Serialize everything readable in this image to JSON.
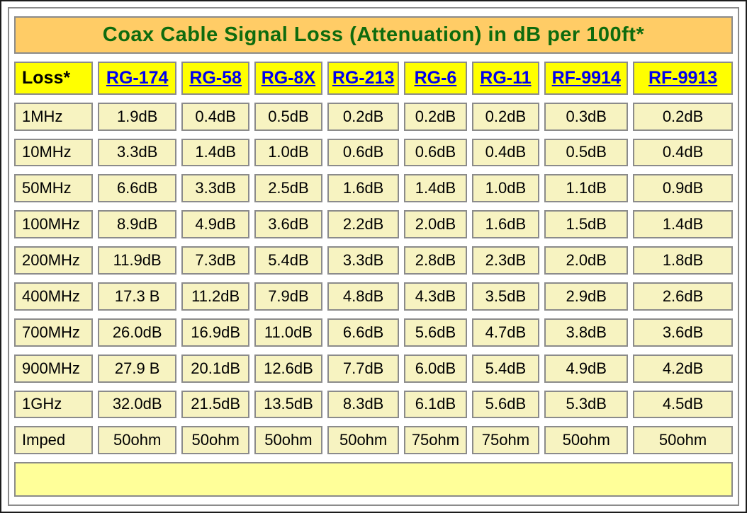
{
  "title": "Coax Cable Signal Loss (Attenuation) in dB per 100ft*",
  "colors": {
    "frame": "#1c1c1c",
    "page_bg": "#ffffff",
    "border": "#8b8b8b",
    "title_bg": "#FFCC66",
    "title_text": "#0E6B0E",
    "header_bg": "#FFFF00",
    "link": "#0000EE",
    "cell_bg": "#F7F3C1",
    "cell_text": "#000000",
    "footer_bg": "#FFFF99"
  },
  "header": {
    "corner": "Loss*",
    "columns": [
      "RG-174",
      "RG-58",
      "RG-8X",
      "RG-213",
      "RG-6",
      "RG-11",
      "RF-9914",
      "RF-9913"
    ]
  },
  "rows": [
    {
      "label": "1MHz",
      "values": [
        "1.9dB",
        "0.4dB",
        "0.5dB",
        "0.2dB",
        "0.2dB",
        "0.2dB",
        "0.3dB",
        "0.2dB"
      ]
    },
    {
      "label": "10MHz",
      "values": [
        "3.3dB",
        "1.4dB",
        "1.0dB",
        "0.6dB",
        "0.6dB",
        "0.4dB",
        "0.5dB",
        "0.4dB"
      ]
    },
    {
      "label": "50MHz",
      "values": [
        "6.6dB",
        "3.3dB",
        "2.5dB",
        "1.6dB",
        "1.4dB",
        "1.0dB",
        "1.1dB",
        "0.9dB"
      ]
    },
    {
      "label": "100MHz",
      "values": [
        "8.9dB",
        "4.9dB",
        "3.6dB",
        "2.2dB",
        "2.0dB",
        "1.6dB",
        "1.5dB",
        "1.4dB"
      ]
    },
    {
      "label": "200MHz",
      "values": [
        "11.9dB",
        "7.3dB",
        "5.4dB",
        "3.3dB",
        "2.8dB",
        "2.3dB",
        "2.0dB",
        "1.8dB"
      ]
    },
    {
      "label": "400MHz",
      "values": [
        "17.3 B",
        "11.2dB",
        "7.9dB",
        "4.8dB",
        "4.3dB",
        "3.5dB",
        "2.9dB",
        "2.6dB"
      ]
    },
    {
      "label": "700MHz",
      "values": [
        "26.0dB",
        "16.9dB",
        "11.0dB",
        "6.6dB",
        "5.6dB",
        "4.7dB",
        "3.8dB",
        "3.6dB"
      ]
    },
    {
      "label": "900MHz",
      "values": [
        "27.9 B",
        "20.1dB",
        "12.6dB",
        "7.7dB",
        "6.0dB",
        "5.4dB",
        "4.9dB",
        "4.2dB"
      ]
    },
    {
      "label": "1GHz",
      "values": [
        "32.0dB",
        "21.5dB",
        "13.5dB",
        "8.3dB",
        "6.1dB",
        "5.6dB",
        "5.3dB",
        "4.5dB"
      ]
    },
    {
      "label": "Imped",
      "values": [
        "50ohm",
        "50ohm",
        "50ohm",
        "50ohm",
        "75ohm",
        "75ohm",
        "50ohm",
        "50ohm"
      ]
    }
  ],
  "footer_note": "",
  "chart_data": {
    "type": "table",
    "title": "Coax Cable Signal Loss (Attenuation) in dB per 100ft*",
    "columns": [
      "Loss*",
      "RG-174",
      "RG-58",
      "RG-8X",
      "RG-213",
      "RG-6",
      "RG-11",
      "RF-9914",
      "RF-9913"
    ],
    "rows": [
      [
        "1MHz",
        "1.9dB",
        "0.4dB",
        "0.5dB",
        "0.2dB",
        "0.2dB",
        "0.2dB",
        "0.3dB",
        "0.2dB"
      ],
      [
        "10MHz",
        "3.3dB",
        "1.4dB",
        "1.0dB",
        "0.6dB",
        "0.6dB",
        "0.4dB",
        "0.5dB",
        "0.4dB"
      ],
      [
        "50MHz",
        "6.6dB",
        "3.3dB",
        "2.5dB",
        "1.6dB",
        "1.4dB",
        "1.0dB",
        "1.1dB",
        "0.9dB"
      ],
      [
        "100MHz",
        "8.9dB",
        "4.9dB",
        "3.6dB",
        "2.2dB",
        "2.0dB",
        "1.6dB",
        "1.5dB",
        "1.4dB"
      ],
      [
        "200MHz",
        "11.9dB",
        "7.3dB",
        "5.4dB",
        "3.3dB",
        "2.8dB",
        "2.3dB",
        "2.0dB",
        "1.8dB"
      ],
      [
        "400MHz",
        "17.3 B",
        "11.2dB",
        "7.9dB",
        "4.8dB",
        "4.3dB",
        "3.5dB",
        "2.9dB",
        "2.6dB"
      ],
      [
        "700MHz",
        "26.0dB",
        "16.9dB",
        "11.0dB",
        "6.6dB",
        "5.6dB",
        "4.7dB",
        "3.8dB",
        "3.6dB"
      ],
      [
        "900MHz",
        "27.9 B",
        "20.1dB",
        "12.6dB",
        "7.7dB",
        "6.0dB",
        "5.4dB",
        "4.9dB",
        "4.2dB"
      ],
      [
        "1GHz",
        "32.0dB",
        "21.5dB",
        "13.5dB",
        "8.3dB",
        "6.1dB",
        "5.6dB",
        "5.3dB",
        "4.5dB"
      ],
      [
        "Imped",
        "50ohm",
        "50ohm",
        "50ohm",
        "50ohm",
        "75ohm",
        "75ohm",
        "50ohm",
        "50ohm"
      ]
    ]
  }
}
